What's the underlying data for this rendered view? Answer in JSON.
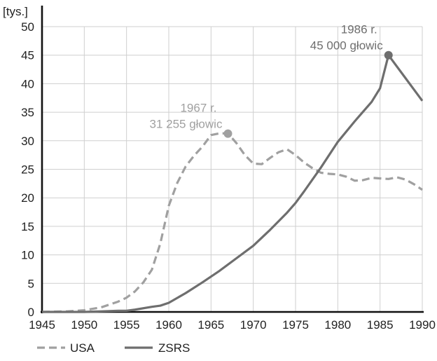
{
  "chart_data": {
    "type": "line",
    "unit_label": "[tys.]",
    "xlim": [
      1945,
      1990
    ],
    "ylim": [
      0,
      50
    ],
    "x_ticks": [
      1945,
      1950,
      1955,
      1960,
      1965,
      1970,
      1975,
      1980,
      1985,
      1990
    ],
    "y_ticks": [
      0,
      5,
      10,
      15,
      20,
      25,
      30,
      35,
      40,
      45,
      50
    ],
    "grid": true,
    "legend_position": "bottom-left",
    "series": [
      {
        "name": "USA",
        "style": "dashed",
        "color": "#a0a0a0",
        "x": [
          1945,
          1948,
          1950,
          1952,
          1954,
          1955,
          1956,
          1957,
          1958,
          1959,
          1960,
          1961,
          1962,
          1963,
          1964,
          1965,
          1966,
          1967,
          1968,
          1969,
          1970,
          1971,
          1972,
          1973,
          1974,
          1975,
          1976,
          1977,
          1978,
          1979,
          1980,
          1981,
          1982,
          1983,
          1984,
          1985,
          1986,
          1987,
          1988,
          1989,
          1990
        ],
        "y": [
          0,
          0.1,
          0.3,
          0.8,
          1.8,
          2.5,
          3.6,
          5.2,
          7.4,
          12.0,
          18.6,
          22.6,
          25.5,
          27.4,
          29.0,
          31.0,
          31.3,
          31.3,
          29.6,
          27.5,
          26.0,
          25.9,
          27.0,
          28.0,
          28.5,
          27.5,
          26.2,
          25.2,
          24.4,
          24.2,
          24.1,
          23.7,
          23.0,
          23.1,
          23.5,
          23.4,
          23.3,
          23.6,
          23.2,
          22.4,
          21.4
        ]
      },
      {
        "name": "ZSRS",
        "style": "solid",
        "color": "#6e6e6e",
        "x": [
          1945,
          1949,
          1950,
          1952,
          1954,
          1955,
          1956,
          1958,
          1959,
          1960,
          1962,
          1964,
          1966,
          1968,
          1970,
          1972,
          1974,
          1975,
          1976,
          1978,
          1980,
          1982,
          1984,
          1985,
          1986,
          1988,
          1990
        ],
        "y": [
          0,
          0,
          0,
          0.1,
          0.2,
          0.2,
          0.4,
          0.9,
          1.1,
          1.6,
          3.3,
          5.2,
          7.2,
          9.4,
          11.6,
          14.4,
          17.4,
          19.1,
          21.1,
          25.3,
          29.8,
          33.4,
          36.8,
          39.2,
          45.0,
          41.0,
          37.0
        ]
      }
    ],
    "annotations": [
      {
        "series": "USA",
        "x": 1967,
        "y": 31.255,
        "line1": "1967 r.",
        "line2": "31 255 głowic",
        "color": "#a0a0a0"
      },
      {
        "series": "ZSRS",
        "x": 1986,
        "y": 45.0,
        "line1": "1986 r.",
        "line2": "45 000 głowic",
        "color": "#6e6e6e"
      }
    ]
  }
}
